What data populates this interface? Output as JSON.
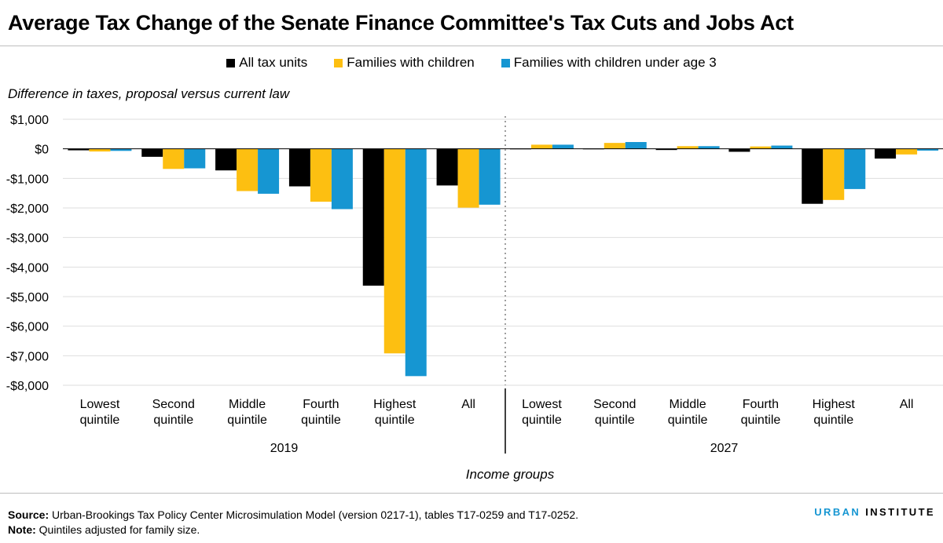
{
  "title": "Average Tax Change of the Senate Finance Committee's Tax Cuts and Jobs Act",
  "ylabel": "Difference in taxes, proposal versus current law",
  "legend": [
    {
      "label": "All tax units",
      "color": "#000000"
    },
    {
      "label": "Families with children",
      "color": "#fdbf11"
    },
    {
      "label": "Families with children under age 3",
      "color": "#1696d2"
    }
  ],
  "chart_data": {
    "type": "bar",
    "title": "Average Tax Change of the Senate Finance Committee's Tax Cuts and Jobs Act",
    "ylabel": "Difference in taxes, proposal versus current law",
    "xlabel": "Income groups",
    "ylim": [
      -8000,
      1000
    ],
    "yticks": [
      1000,
      0,
      -1000,
      -2000,
      -3000,
      -4000,
      -5000,
      -6000,
      -7000,
      -8000
    ],
    "ytick_labels": [
      "$1,000",
      "$0",
      "-$1,000",
      "-$2,000",
      "-$3,000",
      "-$4,000",
      "-$5,000",
      "-$6,000",
      "-$7,000",
      "-$8,000"
    ],
    "grid": true,
    "legend_position": "top-center",
    "groups": [
      {
        "name": "2019",
        "categories": [
          [
            "Lowest",
            "quintile"
          ],
          [
            "Second",
            "quintile"
          ],
          [
            "Middle",
            "quintile"
          ],
          [
            "Fourth",
            "quintile"
          ],
          [
            "Highest",
            "quintile"
          ],
          [
            "All"
          ]
        ],
        "series": [
          {
            "name": "All tax units",
            "values": [
              -50,
              -270,
              -730,
              -1270,
              -4630,
              -1240
            ]
          },
          {
            "name": "Families with children",
            "values": [
              -90,
              -680,
              -1430,
              -1790,
              -6920,
              -1990
            ]
          },
          {
            "name": "Families with children under age 3",
            "values": [
              -70,
              -660,
              -1520,
              -2040,
              -7690,
              -1890
            ]
          }
        ]
      },
      {
        "name": "2027",
        "categories": [
          [
            "Lowest",
            "quintile"
          ],
          [
            "Second",
            "quintile"
          ],
          [
            "Middle",
            "quintile"
          ],
          [
            "Fourth",
            "quintile"
          ],
          [
            "Highest",
            "quintile"
          ],
          [
            "All"
          ]
        ],
        "series": [
          {
            "name": "All tax units",
            "values": [
              10,
              10,
              -40,
              -100,
              -1860,
              -330
            ]
          },
          {
            "name": "Families with children",
            "values": [
              140,
              200,
              90,
              80,
              -1730,
              -190
            ]
          },
          {
            "name": "Families with children under age 3",
            "values": [
              140,
              230,
              90,
              110,
              -1360,
              -60
            ]
          }
        ]
      }
    ]
  },
  "footer": {
    "source_label": "Source:",
    "source_text": "Urban-Brookings Tax Policy Center Microsimulation Model (version 0217-1), tables T17-0259 and T17-0252.",
    "note_label": "Note:",
    "note_text": "Quintiles adjusted for family size.",
    "logo_part1": "URBAN",
    "logo_part2": "INSTITUTE"
  }
}
